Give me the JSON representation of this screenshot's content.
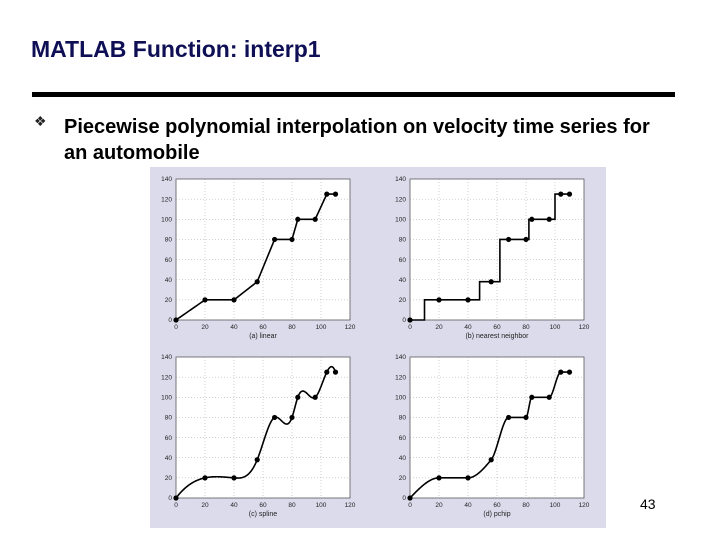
{
  "slide": {
    "title": "MATLAB Function: interp1",
    "bullet": "Piecewise polynomial interpolation on velocity time series for an automobile",
    "page_number": "43"
  },
  "chart_data": [
    {
      "type": "line",
      "caption": "(a) linear",
      "method": "linear",
      "x": [
        0,
        20,
        40,
        56,
        68,
        80,
        84,
        96,
        104,
        110
      ],
      "y": [
        0,
        20,
        20,
        38,
        80,
        80,
        100,
        100,
        125,
        125
      ],
      "xlim": [
        0,
        120
      ],
      "ylim": [
        0,
        140
      ],
      "xticks": [
        0,
        20,
        40,
        60,
        80,
        100,
        120
      ],
      "yticks": [
        0,
        20,
        40,
        60,
        80,
        100,
        120,
        140
      ],
      "grid": true
    },
    {
      "type": "line",
      "caption": "(b) nearest neighbor",
      "method": "nearest",
      "x": [
        0,
        20,
        40,
        56,
        68,
        80,
        84,
        96,
        104,
        110
      ],
      "y": [
        0,
        20,
        20,
        38,
        80,
        80,
        100,
        100,
        125,
        125
      ],
      "xlim": [
        0,
        120
      ],
      "ylim": [
        0,
        140
      ],
      "xticks": [
        0,
        20,
        40,
        60,
        80,
        100,
        120
      ],
      "yticks": [
        0,
        20,
        40,
        60,
        80,
        100,
        120,
        140
      ],
      "grid": true
    },
    {
      "type": "line",
      "caption": "(c) spline",
      "method": "spline",
      "x": [
        0,
        20,
        40,
        56,
        68,
        80,
        84,
        96,
        104,
        110
      ],
      "y": [
        0,
        20,
        20,
        38,
        80,
        80,
        100,
        100,
        125,
        125
      ],
      "xlim": [
        0,
        120
      ],
      "ylim": [
        0,
        140
      ],
      "xticks": [
        0,
        20,
        40,
        60,
        80,
        100,
        120
      ],
      "yticks": [
        0,
        20,
        40,
        60,
        80,
        100,
        120,
        140
      ],
      "grid": true
    },
    {
      "type": "line",
      "caption": "(d) pchip",
      "method": "pchip",
      "x": [
        0,
        20,
        40,
        56,
        68,
        80,
        84,
        96,
        104,
        110
      ],
      "y": [
        0,
        20,
        20,
        38,
        80,
        80,
        100,
        100,
        125,
        125
      ],
      "xlim": [
        0,
        120
      ],
      "ylim": [
        0,
        140
      ],
      "xticks": [
        0,
        20,
        40,
        60,
        80,
        100,
        120
      ],
      "yticks": [
        0,
        20,
        40,
        60,
        80,
        100,
        120,
        140
      ],
      "grid": true
    }
  ],
  "colors": {
    "title": "#0f0f55",
    "figure_background": "#dcdbec",
    "plot_background": "#ffffff",
    "line": "#000000",
    "grid": "#8a8a9a"
  }
}
